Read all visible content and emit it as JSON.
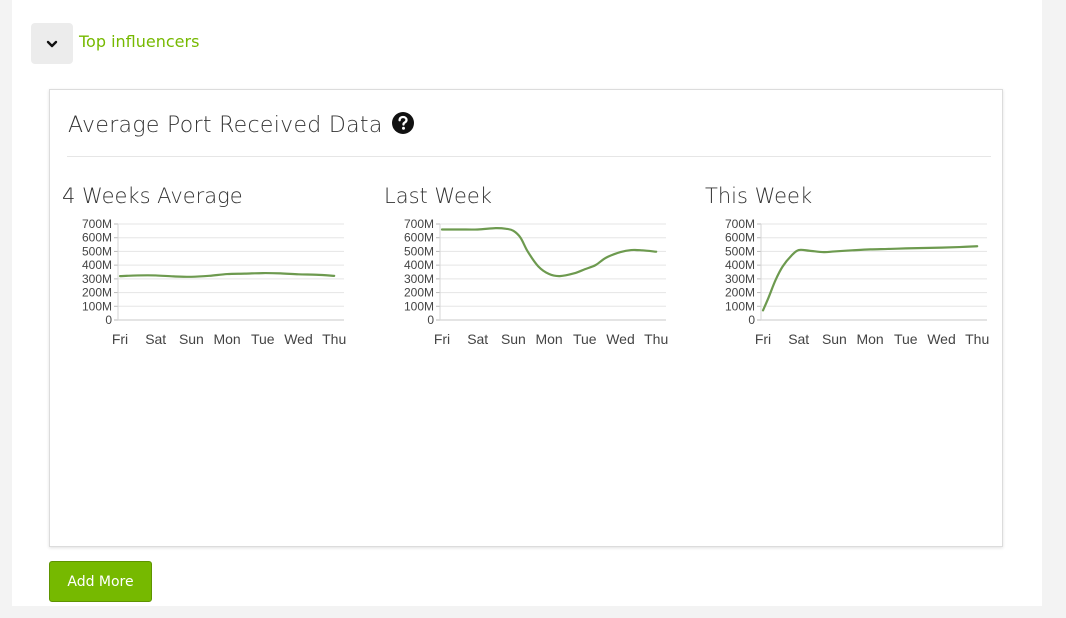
{
  "section": {
    "toggle_icon": "chevron-down-icon",
    "label": "Top influencers"
  },
  "card": {
    "title": "Average Port Received Data",
    "help_icon": "question-circle-icon"
  },
  "buttons": {
    "add_more": "Add More"
  },
  "colors": {
    "accent": "#76b900",
    "line": "#6d9a4f",
    "grid": "#e5e5e5"
  },
  "chart_data": [
    {
      "type": "line",
      "title": "4 Weeks Average",
      "categories": [
        "Fri",
        "Sat",
        "Sun",
        "Mon",
        "Tue",
        "Wed",
        "Thu"
      ],
      "yticks": [
        "700M",
        "600M",
        "500M",
        "400M",
        "300M",
        "200M",
        "100M",
        "0"
      ],
      "ylim": [
        0,
        700
      ],
      "x": [
        0,
        0.5,
        1,
        1.5,
        2,
        2.5,
        3,
        3.5,
        4,
        4.5,
        5,
        5.5,
        6
      ],
      "values": [
        320,
        325,
        325,
        318,
        315,
        322,
        335,
        338,
        342,
        340,
        333,
        330,
        322
      ]
    },
    {
      "type": "line",
      "title": "Last Week",
      "categories": [
        "Fri",
        "Sat",
        "Sun",
        "Mon",
        "Tue",
        "Wed",
        "Thu"
      ],
      "yticks": [
        "700M",
        "600M",
        "500M",
        "400M",
        "300M",
        "200M",
        "100M",
        "0"
      ],
      "ylim": [
        0,
        700
      ],
      "x": [
        0,
        0.5,
        1,
        1.5,
        1.8,
        2,
        2.2,
        2.4,
        2.7,
        3,
        3.3,
        3.7,
        4,
        4.3,
        4.6,
        5,
        5.3,
        5.6,
        6
      ],
      "values": [
        660,
        660,
        660,
        670,
        665,
        650,
        600,
        500,
        390,
        335,
        320,
        340,
        370,
        400,
        455,
        495,
        510,
        508,
        498
      ]
    },
    {
      "type": "line",
      "title": "This Week",
      "categories": [
        "Fri",
        "Sat",
        "Sun",
        "Mon",
        "Tue",
        "Wed",
        "Thu"
      ],
      "yticks": [
        "700M",
        "600M",
        "500M",
        "400M",
        "300M",
        "200M",
        "100M",
        "0"
      ],
      "ylim": [
        0,
        700
      ],
      "x": [
        0,
        0.15,
        0.35,
        0.55,
        0.8,
        1,
        1.3,
        1.7,
        2,
        2.5,
        3,
        3.5,
        4,
        4.5,
        5,
        5.5,
        6
      ],
      "values": [
        70,
        160,
        290,
        390,
        470,
        510,
        505,
        495,
        500,
        508,
        515,
        518,
        522,
        525,
        528,
        532,
        538
      ]
    }
  ]
}
